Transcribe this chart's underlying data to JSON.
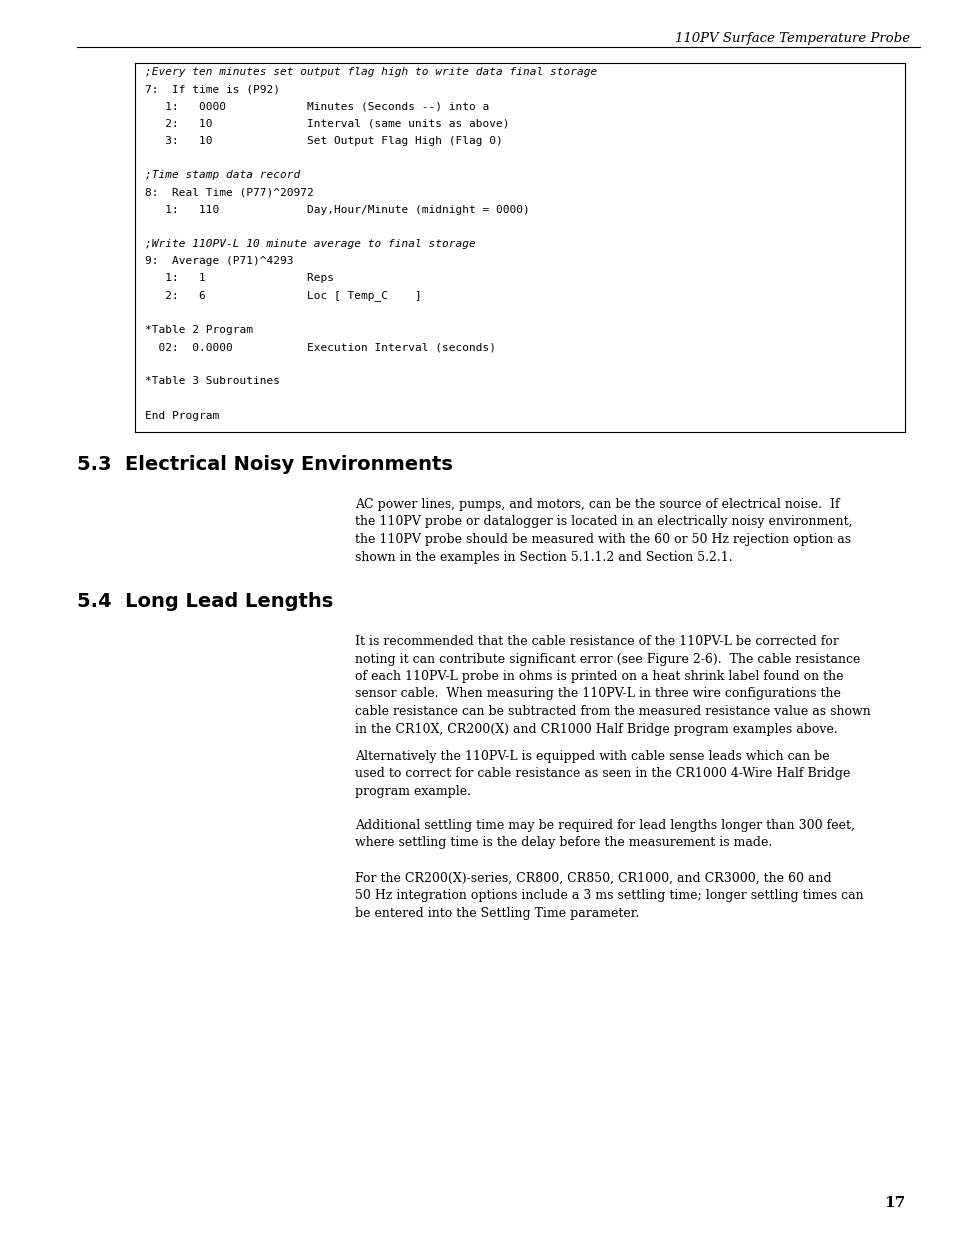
{
  "header_text": "110PV Surface Temperature Probe",
  "page_number": "17",
  "code_box_lines": [
    [
      ";Every ten minutes set output flag high to write data final storage",
      "italic"
    ],
    [
      "7:  If time is (P92)",
      "normal"
    ],
    [
      "   1:   0000            Minutes (Seconds --) into a",
      "normal"
    ],
    [
      "   2:   10              Interval (same units as above)",
      "normal"
    ],
    [
      "   3:   10              Set Output Flag High (Flag 0)",
      "normal"
    ],
    [
      "",
      "normal"
    ],
    [
      ";Time stamp data record",
      "italic"
    ],
    [
      "8:  Real Time (P77)^20972",
      "normal"
    ],
    [
      "   1:   110             Day,Hour/Minute (midnight = 0000)",
      "normal"
    ],
    [
      "",
      "normal"
    ],
    [
      ";Write 110PV-L 10 minute average to final storage",
      "italic"
    ],
    [
      "9:  Average (P71)^4293",
      "normal"
    ],
    [
      "   1:   1               Reps",
      "normal"
    ],
    [
      "   2:   6               Loc [ Temp_C    ]",
      "normal"
    ],
    [
      "",
      "normal"
    ],
    [
      "*Table 2 Program",
      "normal"
    ],
    [
      "  02:  0.0000           Execution Interval (seconds)",
      "normal"
    ],
    [
      "",
      "normal"
    ],
    [
      "*Table 3 Subroutines",
      "normal"
    ],
    [
      "",
      "normal"
    ],
    [
      "End Program",
      "normal"
    ]
  ],
  "section_53_title": "5.3  Electrical Noisy Environments",
  "section_53_body": "AC power lines, pumps, and motors, can be the source of electrical noise.  If\nthe 110PV probe or datalogger is located in an electrically noisy environment,\nthe 110PV probe should be measured with the 60 or 50 Hz rejection option as\nshown in the examples in Section 5.1.1.2 and Section 5.2.1.",
  "section_54_title": "5.4  Long Lead Lengths",
  "section_54_paragraphs": [
    "It is recommended that the cable resistance of the 110PV-L be corrected for\nnoting it can contribute significant error (see Figure 2-6).  The cable resistance\nof each 110PV-L probe in ohms is printed on a heat shrink label found on the\nsensor cable.  When measuring the 110PV-L in three wire configurations the\ncable resistance can be subtracted from the measured resistance value as shown\nin the CR10X, CR200(X) and CR1000 Half Bridge program examples above.",
    "Alternatively the 110PV-L is equipped with cable sense leads which can be\nused to correct for cable resistance as seen in the CR1000 4-Wire Half Bridge\nprogram example.",
    "Additional settling time may be required for lead lengths longer than 300 feet,\nwhere settling time is the delay before the measurement is made.",
    "For the CR200(X)-series, CR800, CR850, CR1000, and CR3000, the 60 and\n50 Hz integration options include a 3 ms settling time; longer settling times can\nbe entered into the Settling Time parameter."
  ],
  "background_color": "#ffffff",
  "text_color": "#000000"
}
